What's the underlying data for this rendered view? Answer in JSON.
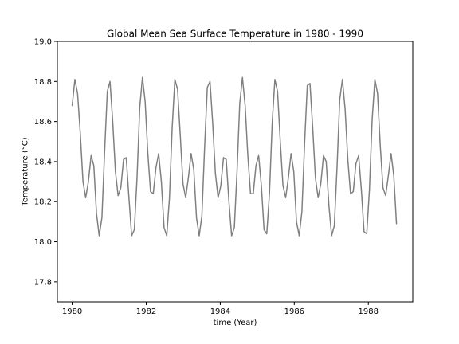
{
  "chart_data": {
    "type": "line",
    "title": "Global Mean Sea Surface Temperature in 1980 - 1990",
    "xlabel": "time (Year)",
    "ylabel": "Temperature (°C)",
    "xlim": [
      1979.6,
      1989.2
    ],
    "ylim": [
      17.7,
      19.0
    ],
    "x_ticks": [
      1980,
      1982,
      1984,
      1986,
      1988
    ],
    "y_ticks": [
      17.8,
      18.0,
      18.2,
      18.4,
      18.6,
      18.8,
      19.0
    ],
    "y_tick_labels": [
      "17.8",
      "18.0",
      "18.2",
      "18.4",
      "18.6",
      "18.8",
      "19.0"
    ],
    "grid": false,
    "series": [
      {
        "color": "#808080",
        "x": [
          1980.0,
          1980.073,
          1980.146,
          1980.219,
          1980.292,
          1980.365,
          1980.438,
          1980.511,
          1980.584,
          1980.657,
          1980.73,
          1980.803,
          1980.876,
          1980.949,
          1981.022,
          1981.095,
          1981.168,
          1981.241,
          1981.314,
          1981.387,
          1981.46,
          1981.533,
          1981.606,
          1981.679,
          1981.752,
          1981.825,
          1981.898,
          1981.971,
          1982.044,
          1982.117,
          1982.19,
          1982.263,
          1982.336,
          1982.409,
          1982.482,
          1982.555,
          1982.628,
          1982.701,
          1982.774,
          1982.847,
          1982.92,
          1982.993,
          1983.066,
          1983.139,
          1983.212,
          1983.285,
          1983.358,
          1983.431,
          1983.504,
          1983.577,
          1983.65,
          1983.723,
          1983.796,
          1983.869,
          1983.942,
          1984.015,
          1984.088,
          1984.161,
          1984.234,
          1984.307,
          1984.38,
          1984.453,
          1984.526,
          1984.599,
          1984.672,
          1984.745,
          1984.818,
          1984.891,
          1984.964,
          1985.037,
          1985.11,
          1985.183,
          1985.256,
          1985.329,
          1985.402,
          1985.475,
          1985.548,
          1985.621,
          1985.694,
          1985.767,
          1985.84,
          1985.913,
          1985.986,
          1986.059,
          1986.132,
          1986.205,
          1986.278,
          1986.351,
          1986.424,
          1986.497,
          1986.57,
          1986.643,
          1986.716,
          1986.789,
          1986.862,
          1986.935,
          1987.008,
          1987.081,
          1987.154,
          1987.227,
          1987.3,
          1987.373,
          1987.446,
          1987.519,
          1987.592,
          1987.665,
          1987.738,
          1987.811,
          1987.884,
          1987.957,
          1988.03,
          1988.103,
          1988.176,
          1988.249,
          1988.322,
          1988.395,
          1988.468,
          1988.541,
          1988.614,
          1988.687,
          1988.76
        ],
        "y": [
          18.68,
          18.81,
          18.74,
          18.54,
          18.3,
          18.22,
          18.3,
          18.43,
          18.38,
          18.14,
          18.03,
          18.12,
          18.45,
          18.75,
          18.8,
          18.6,
          18.35,
          18.23,
          18.27,
          18.41,
          18.42,
          18.22,
          18.03,
          18.06,
          18.32,
          18.67,
          18.82,
          18.7,
          18.44,
          18.25,
          18.24,
          18.37,
          18.44,
          18.3,
          18.07,
          18.03,
          18.22,
          18.57,
          18.81,
          18.76,
          18.53,
          18.29,
          18.22,
          18.32,
          18.44,
          18.36,
          18.12,
          18.03,
          18.13,
          18.47,
          18.77,
          18.8,
          18.59,
          18.34,
          18.22,
          18.28,
          18.42,
          18.41,
          18.2,
          18.03,
          18.07,
          18.35,
          18.69,
          18.82,
          18.68,
          18.43,
          18.24,
          18.24,
          18.38,
          18.43,
          18.28,
          18.06,
          18.04,
          18.24,
          18.59,
          18.81,
          18.75,
          18.5,
          18.28,
          18.22,
          18.32,
          18.44,
          18.35,
          18.1,
          18.03,
          18.15,
          18.49,
          18.78,
          18.79,
          18.57,
          18.32,
          18.22,
          18.29,
          18.43,
          18.4,
          18.18,
          18.03,
          18.08,
          18.37,
          18.71,
          18.81,
          18.66,
          18.41,
          18.24,
          18.25,
          18.39,
          18.43,
          18.26,
          18.05,
          18.04,
          18.26,
          18.61,
          18.81,
          18.74,
          18.48,
          18.27,
          18.23,
          18.33,
          18.44,
          18.33,
          18.09
        ]
      }
    ]
  }
}
